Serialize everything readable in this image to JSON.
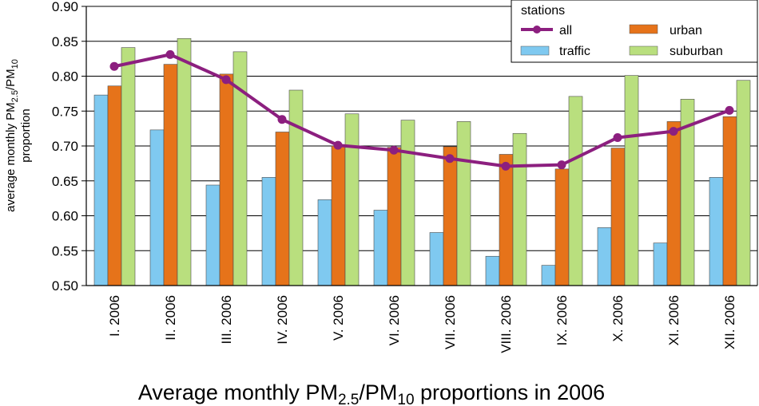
{
  "chart_data": {
    "type": "bar",
    "title": {
      "pre": "Average monthly PM",
      "sub1": "2.5",
      "mid": "/PM",
      "sub2": "10",
      "post": " proportions in 2006"
    },
    "ylabel": {
      "line1_pre": "average monthly PM",
      "line1_sub1": "2.5",
      "line1_mid": "/PM",
      "line1_sub2": "10",
      "line2": "proportion"
    },
    "xlabel": "",
    "ylim": [
      0.5,
      0.9
    ],
    "yticks": [
      "0.50",
      "0.55",
      "0.60",
      "0.65",
      "0.70",
      "0.75",
      "0.80",
      "0.85",
      "0.90"
    ],
    "grid": true,
    "categories": [
      "I. 2006",
      "II. 2006",
      "III. 2006",
      "IV. 2006",
      "V. 2006",
      "VI. 2006",
      "VII. 2006",
      "VIII. 2006",
      "IX. 2006",
      "X. 2006",
      "XI. 2006",
      "XII. 2006"
    ],
    "legend": {
      "title": "stations",
      "placement": "top-right"
    },
    "series": [
      {
        "name": "traffic",
        "kind": "bar",
        "color": "#7fc9f0",
        "values": [
          0.773,
          0.723,
          0.644,
          0.655,
          0.623,
          0.608,
          0.576,
          0.542,
          0.529,
          0.583,
          0.561,
          0.655
        ]
      },
      {
        "name": "urban",
        "kind": "bar",
        "color": "#e6731a",
        "values": [
          0.786,
          0.817,
          0.803,
          0.72,
          0.7,
          0.698,
          0.699,
          0.688,
          0.667,
          0.697,
          0.735,
          0.742
        ]
      },
      {
        "name": "suburban",
        "kind": "bar",
        "color": "#b9df7e",
        "values": [
          0.841,
          0.854,
          0.835,
          0.78,
          0.746,
          0.737,
          0.735,
          0.718,
          0.771,
          0.801,
          0.767,
          0.794
        ]
      },
      {
        "name": "all",
        "kind": "line",
        "color": "#8c1f7f",
        "values": [
          0.814,
          0.831,
          0.795,
          0.738,
          0.701,
          0.694,
          0.682,
          0.671,
          0.673,
          0.712,
          0.721,
          0.751
        ]
      }
    ]
  }
}
